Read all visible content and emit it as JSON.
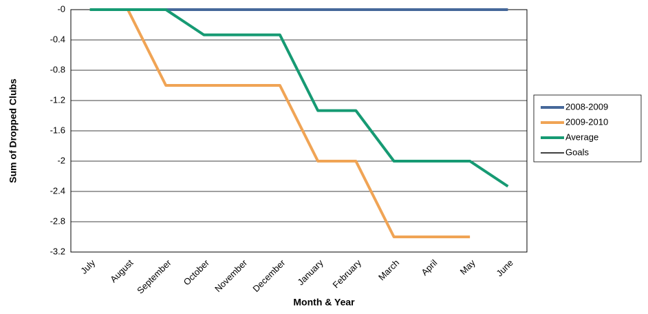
{
  "chart_data": {
    "type": "line",
    "x_label": "Month & Year",
    "y_label": "Sum of Dropped Clubs",
    "categories": [
      "July",
      "August",
      "September",
      "October",
      "November",
      "December",
      "January",
      "February",
      "March",
      "April",
      "May",
      "June"
    ],
    "series": [
      {
        "name": "2008-2009",
        "color": "#46689a",
        "values": [
          0,
          0,
          0,
          0,
          0,
          0,
          0,
          0,
          0,
          0,
          0,
          0
        ]
      },
      {
        "name": "2009-2010",
        "color": "#f0a455",
        "values": [
          0,
          0,
          -1,
          -1,
          -1,
          -1,
          -2,
          -2,
          -3,
          -3,
          -3,
          null
        ]
      },
      {
        "name": "Average",
        "color": "#169a73",
        "values": [
          0,
          0,
          0,
          -0.333,
          -0.333,
          -0.333,
          -1.333,
          -1.333,
          -2,
          -2,
          -2,
          -2.333
        ]
      },
      {
        "name": "Goals",
        "color": "#000000",
        "values": [
          null,
          null,
          null,
          null,
          null,
          null,
          null,
          null,
          null,
          null,
          null,
          null
        ]
      }
    ],
    "ylim": [
      -3.2,
      0
    ],
    "yticks": [
      {
        "value": 0,
        "label": "-0"
      },
      -0.4,
      -0.8,
      -1.2,
      -1.6,
      -2,
      -2.4,
      -2.8,
      -3.2
    ],
    "grid": true,
    "legend": "right"
  }
}
